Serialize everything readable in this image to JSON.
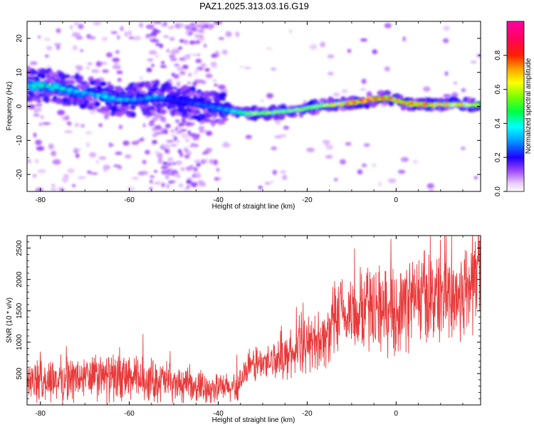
{
  "title": "PAZ1.2025.313.03.16.G19",
  "chart_data": [
    {
      "type": "heatmap",
      "name": "spectrogram",
      "xlabel": "Height of straight line (km)",
      "ylabel": "Frequency (Hz)",
      "xlim": [
        -83,
        19
      ],
      "ylim": [
        -25,
        25
      ],
      "xticks": [
        -80,
        -60,
        -40,
        -20,
        0
      ],
      "yticks": [
        -20,
        -10,
        0,
        10,
        20
      ],
      "colorbar": {
        "label": "Normalized spectral amplitude",
        "range": [
          0,
          1
        ],
        "ticks": [
          "0.0",
          "0.2",
          "0.4",
          "0.6",
          "0.8"
        ],
        "tick_values": [
          0.0,
          0.2,
          0.4,
          0.6,
          0.8
        ]
      },
      "ridge": {
        "height_km": [
          -82,
          -78,
          -74,
          -70,
          -66,
          -62,
          -58,
          -54,
          -50,
          -46,
          -42,
          -38,
          -34,
          -30,
          -26,
          -22,
          -18,
          -14,
          -10,
          -6,
          -2,
          2,
          6,
          10,
          14,
          18
        ],
        "frequency_hz": [
          6,
          6,
          5,
          4,
          3,
          2,
          2,
          3,
          2,
          1,
          0,
          -1,
          -2,
          -2,
          -1.5,
          -1,
          0,
          0.5,
          1,
          2,
          2.5,
          1,
          0.5,
          0.5,
          0.5,
          0.5
        ],
        "amplitude": [
          0.45,
          0.45,
          0.4,
          0.35,
          0.4,
          0.35,
          0.3,
          0.35,
          0.2,
          0.25,
          0.3,
          0.35,
          0.55,
          0.6,
          0.6,
          0.6,
          0.6,
          0.65,
          0.85,
          0.9,
          0.8,
          0.75,
          0.8,
          0.7,
          0.7,
          0.65
        ]
      }
    },
    {
      "type": "line",
      "name": "snr",
      "xlabel": "Height of straight line (km)",
      "ylabel": "SNR (10 * v/v)",
      "xlim": [
        -83,
        19
      ],
      "ylim": [
        0,
        2700
      ],
      "xticks": [
        -80,
        -60,
        -40,
        -20,
        0
      ],
      "yticks": [
        500,
        1000,
        1500,
        2000,
        2500
      ],
      "color": "#e83a3a",
      "series": [
        {
          "name": "SNR",
          "height_km": [
            -83,
            -80,
            -76,
            -72,
            -68,
            -64,
            -60,
            -56,
            -52,
            -48,
            -44,
            -40,
            -36,
            -34,
            -32,
            -30,
            -28,
            -26,
            -24,
            -22,
            -20,
            -18,
            -16,
            -14,
            -12,
            -10,
            -8,
            -6,
            -4,
            -2,
            0,
            2,
            4,
            6,
            8,
            10,
            12,
            14,
            16,
            18
          ],
          "snr": [
            350,
            380,
            400,
            420,
            440,
            430,
            420,
            400,
            380,
            300,
            280,
            270,
            260,
            500,
            650,
            650,
            700,
            800,
            750,
            900,
            950,
            1050,
            1050,
            1300,
            1400,
            1450,
            1500,
            1550,
            1600,
            1450,
            1500,
            1600,
            1700,
            1750,
            1700,
            1800,
            1750,
            1700,
            1850,
            2100
          ]
        }
      ]
    }
  ]
}
